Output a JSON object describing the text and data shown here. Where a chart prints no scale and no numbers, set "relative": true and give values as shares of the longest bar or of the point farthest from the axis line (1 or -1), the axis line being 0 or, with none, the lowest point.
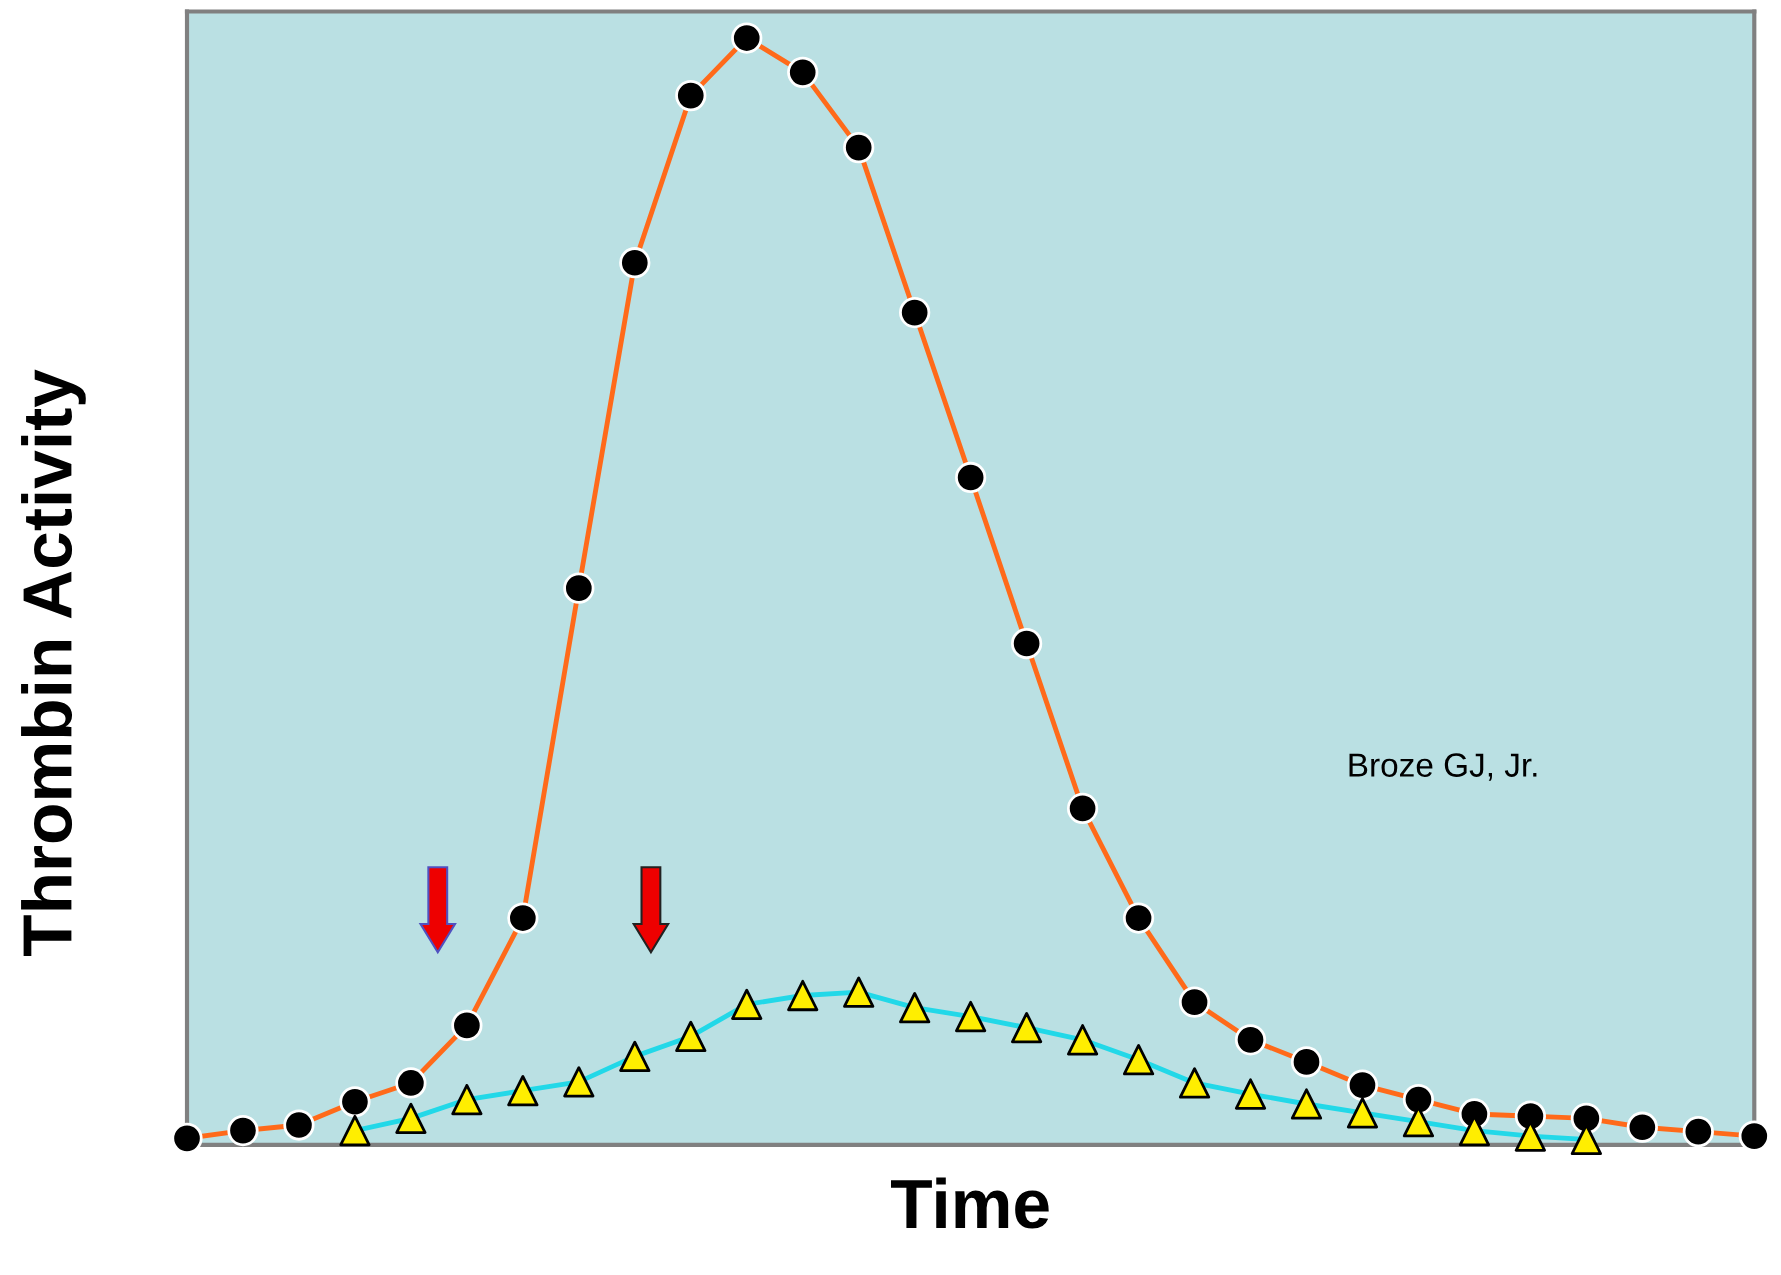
{
  "chart_data": {
    "type": "line",
    "xlabel": "Time",
    "ylabel": "Thrombin Activity",
    "relative": true,
    "grid": false,
    "legend": false,
    "categories": [
      null,
      null,
      null,
      null,
      null,
      null,
      null,
      null,
      null,
      null,
      null,
      null,
      null,
      null,
      null,
      null,
      null,
      null,
      null,
      null,
      null,
      null,
      null,
      null,
      null,
      null,
      null,
      null,
      null
    ],
    "series": [
      {
        "color": "#22d8e8",
        "marker": "triangle",
        "colors": [
          "#ffee00",
          "#ffee00",
          "#ffee00",
          "#ffee00",
          "#ffee00",
          "#ffee00",
          "#ffee00",
          "#ffee00",
          "#ffee00",
          "#ffee00",
          "#ffee00",
          "#ffee00",
          "#ffee00",
          "#ffee00",
          "#ffee00",
          "#ffee00",
          "#ffee00",
          "#ffee00",
          "#ffee00",
          "#ffee00",
          "#ffee00",
          "#ffee00",
          "#ffee00",
          "#ffee00",
          "#ffee00",
          "#ffee00",
          "#ffee00",
          "#ffee00",
          "#ffee00"
        ],
        "values": [
          null,
          null,
          null,
          0.013,
          0.024,
          0.041,
          0.049,
          0.057,
          0.08,
          0.098,
          0.127,
          0.135,
          0.138,
          0.124,
          0.116,
          0.106,
          0.095,
          0.077,
          0.056,
          0.046,
          0.037,
          0.029,
          0.021,
          0.013,
          0.008,
          0.005,
          null,
          null,
          null
        ]
      },
      {
        "color": "#ff6a1a",
        "marker": "circle",
        "colors": [
          "#000000",
          "#000000",
          "#000000",
          "#000000",
          "#000000",
          "#000000",
          "#000000",
          "#000000",
          "#000000",
          "#000000",
          "#000000",
          "#000000",
          "#000000",
          "#000000",
          "#000000",
          "#000000",
          "#000000",
          "#000000",
          "#000000",
          "#000000",
          "#000000",
          "#000000",
          "#000000",
          "#000000",
          "#000000",
          "#000000",
          "#000000",
          "#000000",
          "#000000"
        ],
        "values": [
          0.006,
          0.013,
          0.018,
          0.039,
          0.056,
          0.108,
          0.205,
          0.503,
          0.797,
          0.948,
          1,
          0.969,
          0.901,
          0.752,
          0.603,
          0.453,
          0.304,
          0.205,
          0.129,
          0.095,
          0.075,
          0.054,
          0.041,
          0.028,
          0.026,
          0.024,
          0.016,
          0.012,
          0.008
        ]
      }
    ],
    "annotations": [
      "Broze GJ, Jr."
    ]
  }
}
